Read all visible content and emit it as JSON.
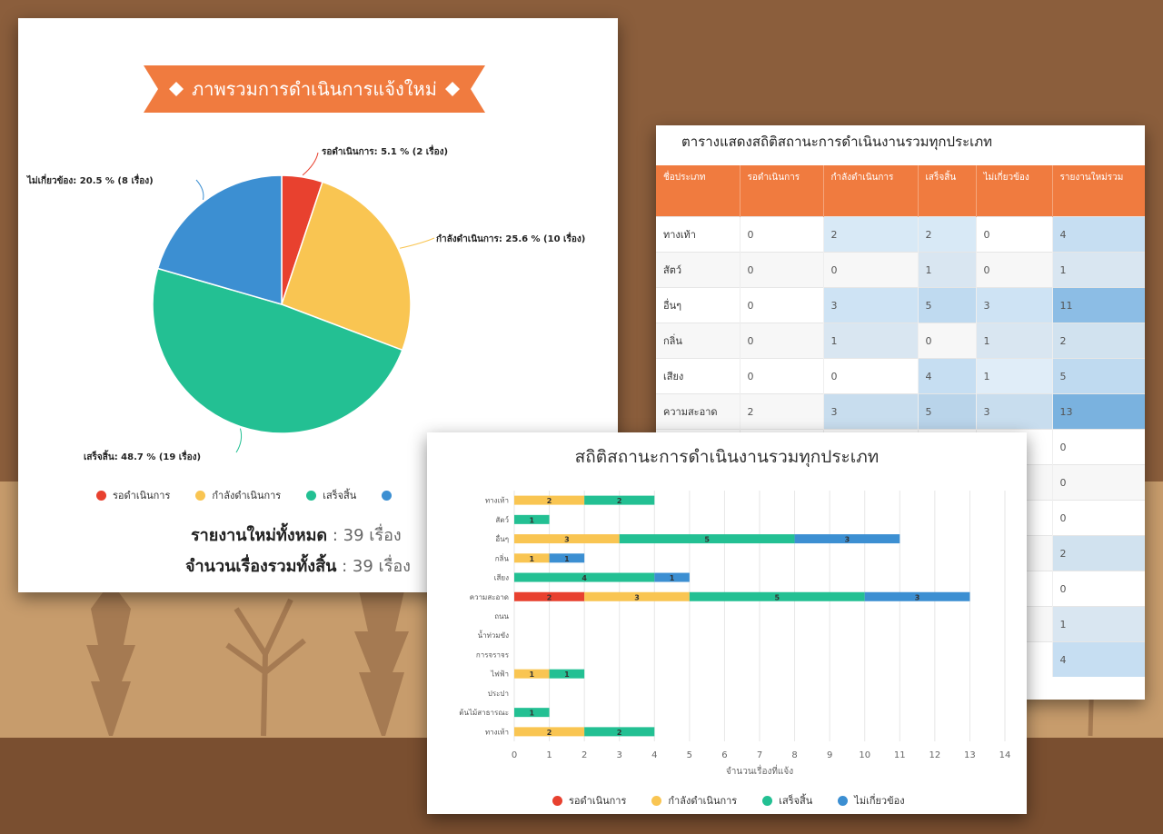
{
  "pie_panel": {
    "title": "ภาพรวมการดำเนินการแจ้งใหม่",
    "slice_labels": [
      "รอดำเนินการ: 5.1 % (2 เรื่อง)",
      "กำลังดำเนินการ: 25.6 % (10 เรื่อง)",
      "เสร็จสิ้น: 48.7 % (19 เรื่อง)",
      "ไม่เกี่ยวข้อง: 20.5 % (8 เรื่อง)"
    ],
    "legend": [
      "รอดำเนินการ",
      "กำลังดำเนินการ",
      "เสร็จสิ้น"
    ],
    "summary_total_label": "รายงานใหม่ทั้งหมด",
    "summary_total_value": ": 39 เรื่อง",
    "summary_all_label": "จำนวนเรื่องรวมทั้งสิ้น",
    "summary_all_value": ": 39 เรื่อง"
  },
  "colors": {
    "pending": "#e8412f",
    "in_progress": "#f9c552",
    "done": "#23c093",
    "unrelated": "#3c8fd2",
    "header": "#f07b3f",
    "ribbon": "#f07b3f"
  },
  "table_panel": {
    "title": "ตารางแสดงสถิติสถานะการดำเนินงานรวมทุกประเภท",
    "headers": [
      "ชื่อประเภท",
      "รอดำเนินการ",
      "กำลังดำเนินการ",
      "เสร็จสิ้น",
      "ไม่เกี่ยวข้อง",
      "รายงานใหม่รวม"
    ],
    "rows": [
      {
        "name": "ทางเท้า",
        "cells": [
          "0",
          "2",
          "2",
          "0",
          "4"
        ]
      },
      {
        "name": "สัตว์",
        "cells": [
          "0",
          "0",
          "1",
          "0",
          "1"
        ]
      },
      {
        "name": "อื่นๆ",
        "cells": [
          "0",
          "3",
          "5",
          "3",
          "11"
        ]
      },
      {
        "name": "กลิ่น",
        "cells": [
          "0",
          "1",
          "0",
          "1",
          "2"
        ]
      },
      {
        "name": "เสียง",
        "cells": [
          "0",
          "0",
          "4",
          "1",
          "5"
        ]
      },
      {
        "name": "ความสะอาด",
        "cells": [
          "2",
          "3",
          "5",
          "3",
          "13"
        ]
      },
      {
        "name": "",
        "cells": [
          "",
          "",
          "",
          "",
          "0"
        ]
      },
      {
        "name": "",
        "cells": [
          "",
          "",
          "",
          "",
          "0"
        ]
      },
      {
        "name": "",
        "cells": [
          "",
          "",
          "",
          "",
          "0"
        ]
      },
      {
        "name": "",
        "cells": [
          "",
          "",
          "",
          "",
          "2"
        ]
      },
      {
        "name": "",
        "cells": [
          "",
          "",
          "",
          "",
          "0"
        ]
      },
      {
        "name": "",
        "cells": [
          "",
          "",
          "",
          "",
          "1"
        ]
      },
      {
        "name": "",
        "cells": [
          "",
          "",
          "",
          "",
          "4"
        ]
      }
    ]
  },
  "chart_data": [
    {
      "type": "pie",
      "title": "ภาพรวมการดำเนินการแจ้งใหม่",
      "categories": [
        "รอดำเนินการ",
        "กำลังดำเนินการ",
        "เสร็จสิ้น",
        "ไม่เกี่ยวข้อง"
      ],
      "values": [
        2,
        10,
        19,
        8
      ],
      "percent": [
        5.1,
        25.6,
        48.7,
        20.5
      ]
    },
    {
      "type": "bar",
      "orientation": "horizontal",
      "stacked": true,
      "title": "สถิติสถานะการดำเนินงานรวมทุกประเภท",
      "xlabel": "จำนวนเรื่องที่แจ้ง",
      "xlim": [
        0,
        14
      ],
      "xticks": [
        "0",
        "1",
        "2",
        "3",
        "4",
        "5",
        "6",
        "7",
        "8",
        "9",
        "10",
        "11",
        "12",
        "13",
        "14"
      ],
      "grid": true,
      "categories": [
        "ทางเท้า",
        "สัตว์",
        "อื่นๆ",
        "กลิ่น",
        "เสียง",
        "ความสะอาด",
        "ถนน",
        "น้ำท่วมขัง",
        "การจราจร",
        "ไฟฟ้า",
        "ประปา",
        "ต้นไม้สาธารณะ",
        "ทางเท้า"
      ],
      "series": [
        {
          "name": "รอดำเนินการ",
          "values": [
            0,
            0,
            0,
            0,
            0,
            2,
            0,
            0,
            0,
            0,
            0,
            0,
            0
          ]
        },
        {
          "name": "กำลังดำเนินการ",
          "values": [
            2,
            0,
            3,
            1,
            0,
            3,
            0,
            0,
            0,
            1,
            0,
            0,
            2
          ]
        },
        {
          "name": "เสร็จสิ้น",
          "values": [
            2,
            1,
            5,
            0,
            4,
            5,
            0,
            0,
            0,
            1,
            0,
            1,
            2
          ]
        },
        {
          "name": "ไม่เกี่ยวข้อง",
          "values": [
            0,
            0,
            3,
            1,
            1,
            3,
            0,
            0,
            0,
            0,
            0,
            0,
            0
          ]
        }
      ],
      "legend_position": "bottom"
    }
  ]
}
